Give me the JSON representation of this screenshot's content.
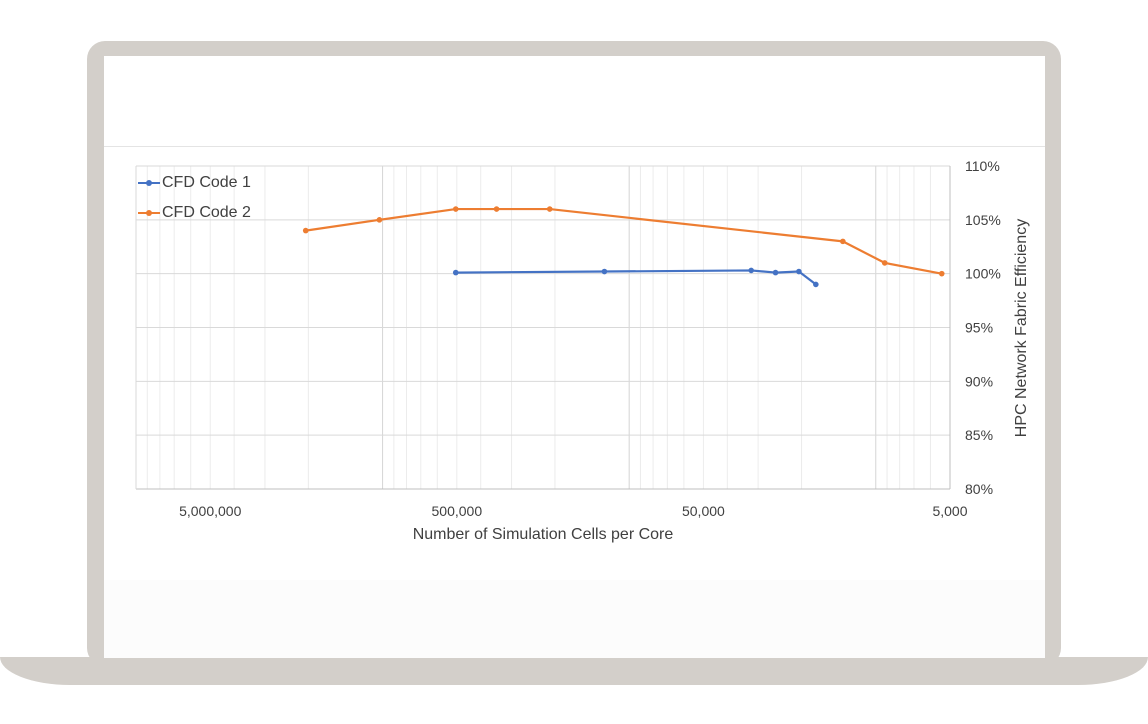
{
  "colors": {
    "frame": "#d3cfca",
    "series1": "#4472c4",
    "series2": "#ed7d31"
  },
  "chart_data": {
    "type": "line",
    "xlabel": "Number of Simulation Cells per Core",
    "ylabel": "HPC Network Fabric Efficiency",
    "x_scale": "log",
    "x_reversed": true,
    "xlim": [
      10000000,
      5000
    ],
    "ylim": [
      80,
      110
    ],
    "x_ticks": [
      5000000,
      500000,
      50000,
      5000
    ],
    "x_tick_labels": [
      "5,000,000",
      "500,000",
      "50,000",
      "5,000"
    ],
    "y_ticks": [
      80,
      85,
      90,
      95,
      100,
      105,
      110
    ],
    "y_tick_labels": [
      "80%",
      "85%",
      "90%",
      "95%",
      "100%",
      "105%",
      "110%"
    ],
    "y_axis_position": "right",
    "grid": true,
    "legend_position": "top-left",
    "series": [
      {
        "name": "CFD Code 1",
        "color": "#4472c4",
        "x": [
          505000,
          126000,
          32000,
          25500,
          20500,
          17500
        ],
        "y": [
          100.1,
          100.2,
          100.3,
          100.1,
          100.2,
          99.0
        ]
      },
      {
        "name": "CFD Code 2",
        "color": "#ed7d31",
        "x": [
          2050000,
          1030000,
          505000,
          345000,
          210000,
          13600,
          9200,
          5400
        ],
        "y": [
          104.0,
          105.0,
          106.0,
          106.0,
          106.0,
          103.0,
          101.0,
          100.0
        ]
      }
    ]
  }
}
